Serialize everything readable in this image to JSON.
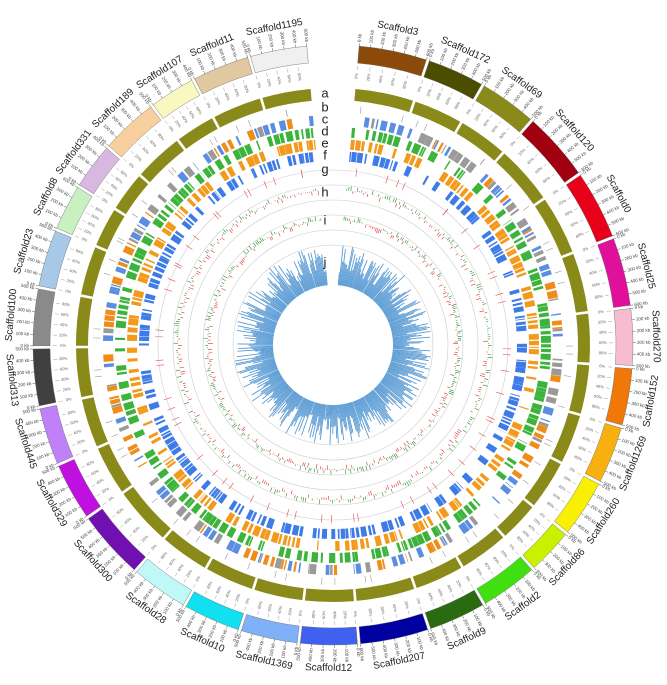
{
  "track_labels": [
    "a",
    "b",
    "c",
    "d",
    "e",
    "f",
    "g",
    "h",
    "i",
    "j"
  ],
  "kb_ticks": [
    {
      "value": 0,
      "label": "0 kb"
    },
    {
      "value": 100,
      "label": "100 kb"
    },
    {
      "value": 200,
      "label": "200 kb"
    },
    {
      "value": 300,
      "label": "300 kb"
    },
    {
      "value": 400,
      "label": "400 kb"
    },
    {
      "value": 500,
      "label": "500 kb"
    },
    {
      "value": 600,
      "label": "600 kb"
    },
    {
      "value": 700,
      "label": "700 kb"
    }
  ],
  "pct_ticks": [
    {
      "value": 0,
      "label": "0%"
    },
    {
      "value": 20,
      "label": "20%"
    },
    {
      "value": 40,
      "label": "40%"
    },
    {
      "value": 60,
      "label": "60%"
    },
    {
      "value": 80,
      "label": "80%"
    }
  ],
  "scaffolds": [
    {
      "name": "Scaffold3",
      "color": "#8b4a0a",
      "length_kb": 600
    },
    {
      "name": "Scaffold172",
      "color": "#4d4d00",
      "length_kb": 500
    },
    {
      "name": "Scaffold69",
      "color": "#8a8a1a",
      "length_kb": 500
    },
    {
      "name": "Scaffold120",
      "color": "#a00010",
      "length_kb": 600
    },
    {
      "name": "Scaffold0",
      "color": "#e8001a",
      "length_kb": 600
    },
    {
      "name": "Scaffold25",
      "color": "#e0109a",
      "length_kb": 600
    },
    {
      "name": "Scaffold270",
      "color": "#f8bcd0",
      "length_kb": 500
    },
    {
      "name": "Scaffold152",
      "color": "#f07808",
      "length_kb": 500
    },
    {
      "name": "Scaffold1269",
      "color": "#f8b010",
      "length_kb": 500
    },
    {
      "name": "Scaffold260",
      "color": "#f8f000",
      "length_kb": 500
    },
    {
      "name": "Scaffold86",
      "color": "#c8f000",
      "length_kb": 400
    },
    {
      "name": "Scaffold2",
      "color": "#40e010",
      "length_kb": 500
    },
    {
      "name": "Scaffold9",
      "color": "#2a6a10",
      "length_kb": 500
    },
    {
      "name": "Scaffold207",
      "color": "#0000a0",
      "length_kb": 600
    },
    {
      "name": "Scaffold12",
      "color": "#4060f0",
      "length_kb": 500
    },
    {
      "name": "Scaffold1369",
      "color": "#80b0f8",
      "length_kb": 500
    },
    {
      "name": "Scaffold10",
      "color": "#10e0f0",
      "length_kb": 500
    },
    {
      "name": "Scaffold28",
      "color": "#c0f8f8",
      "length_kb": 500
    },
    {
      "name": "Scaffold300",
      "color": "#7010b0",
      "length_kb": 600
    },
    {
      "name": "Scaffold329",
      "color": "#c010e0",
      "length_kb": 500
    },
    {
      "name": "Scaffold445",
      "color": "#c080f8",
      "length_kb": 500
    },
    {
      "name": "Scaffold313",
      "color": "#404040",
      "length_kb": 500
    },
    {
      "name": "Scaffold100",
      "color": "#8a8a8a",
      "length_kb": 500
    },
    {
      "name": "Scaffold23",
      "color": "#a8c8e8",
      "length_kb": 500
    },
    {
      "name": "Scaffold8",
      "color": "#c8f0c0",
      "length_kb": 400
    },
    {
      "name": "Scaffold331",
      "color": "#d8b8e0",
      "length_kb": 400
    },
    {
      "name": "Scaffold189",
      "color": "#f8d0a0",
      "length_kb": 500
    },
    {
      "name": "Scaffold107",
      "color": "#f8f8c0",
      "length_kb": 400
    },
    {
      "name": "Scaffold11",
      "color": "#e0c8a0",
      "length_kb": 500
    },
    {
      "name": "Scaffold1195",
      "color": "#f0f0f0",
      "length_kb": 500
    }
  ]
}
